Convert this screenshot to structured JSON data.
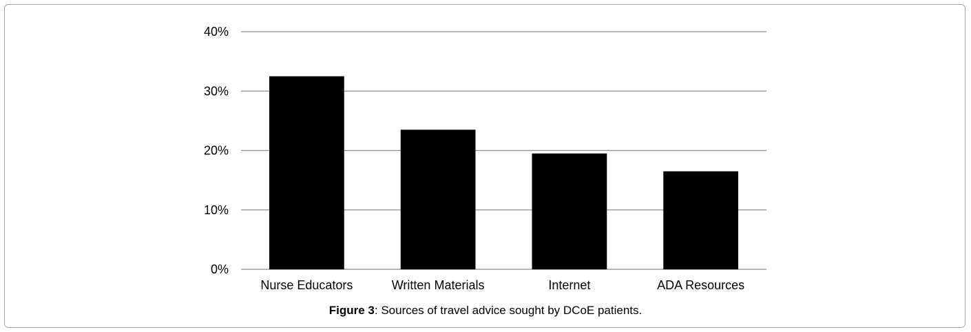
{
  "chart_data": {
    "type": "bar",
    "categories": [
      "Nurse Educators",
      "Written Materials",
      "Internet",
      "ADA Resources"
    ],
    "values": [
      32.5,
      23.5,
      19.5,
      16.5
    ],
    "ylim": [
      0,
      40
    ],
    "yticks": [
      0,
      10,
      20,
      30,
      40
    ],
    "ytick_labels": [
      "0%",
      "10%",
      "20%",
      "30%",
      "40%"
    ],
    "grid": true,
    "bar_color": "#000000",
    "grid_color": "#8c8c8c"
  },
  "caption": {
    "label": "Figure 3",
    "text": ": Sources of travel advice sought by DCoE patients."
  }
}
